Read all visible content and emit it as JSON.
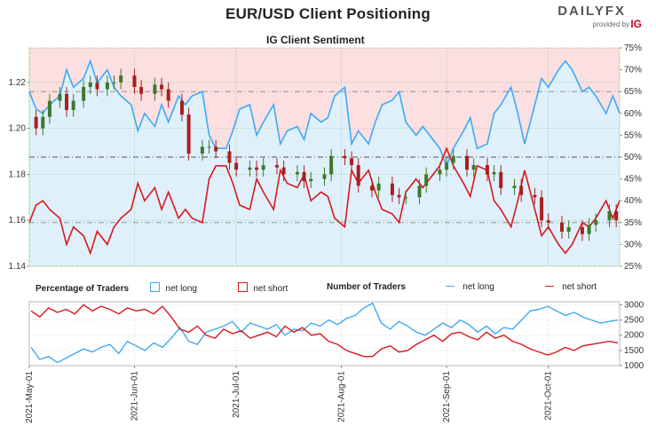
{
  "header": {
    "title": "EUR/USD Client Positioning",
    "subtitle": "IG Client Sentiment",
    "logo_brand": "DAILYFX",
    "logo_provided": "provided by",
    "logo_ig": "IG"
  },
  "legend": {
    "pct_label": "Percentage of Traders",
    "pct_long": "net long",
    "pct_short": "net short",
    "num_label": "Number of Traders",
    "num_long": "net long",
    "num_short": "net short"
  },
  "colors": {
    "long": "#3fa9f5",
    "short": "#d7191c",
    "bull_candle": "#3c7a2b",
    "bear_candle": "#a82020",
    "long_zone": "#dff0fb",
    "short_zone": "#fbdfe1",
    "axis_green": "#7bb661"
  },
  "chart_data": [
    {
      "type": "candlestick+line",
      "name": "price-and-percentage",
      "x_ticks": [
        "2021-May-01",
        "2021-Jun-01",
        "2021-Jul-01",
        "2021-Aug-01",
        "2021-Sep-01",
        "2021-Oct-01"
      ],
      "x_range": [
        "2021-05-01",
        "2021-10-22"
      ],
      "y_left_ticks": [
        "1.14",
        "1.16",
        "1.18",
        "1.20",
        "1.22"
      ],
      "y_left_range": [
        1.14,
        1.235
      ],
      "y_right_ticks": [
        "25%",
        "30%",
        "35%",
        "40%",
        "45%",
        "50%",
        "55%",
        "60%",
        "65%",
        "70%",
        "75%"
      ],
      "y_right_range": [
        25,
        75
      ],
      "reference_lines": [
        35,
        50,
        65
      ],
      "net_long_pct_series": {
        "dates": [
          "2021-05-01",
          "2021-05-03",
          "2021-05-05",
          "2021-05-07",
          "2021-05-10",
          "2021-05-12",
          "2021-05-14",
          "2021-05-17",
          "2021-05-19",
          "2021-05-21",
          "2021-05-24",
          "2021-05-26",
          "2021-05-28",
          "2021-05-31",
          "2021-06-02",
          "2021-06-04",
          "2021-06-07",
          "2021-06-09",
          "2021-06-11",
          "2021-06-14",
          "2021-06-16",
          "2021-06-18",
          "2021-06-21",
          "2021-06-23",
          "2021-06-25",
          "2021-06-28",
          "2021-06-30",
          "2021-07-02",
          "2021-07-05",
          "2021-07-07",
          "2021-07-09",
          "2021-07-12",
          "2021-07-14",
          "2021-07-16",
          "2021-07-19",
          "2021-07-21",
          "2021-07-23",
          "2021-07-26",
          "2021-07-28",
          "2021-07-30",
          "2021-08-02",
          "2021-08-04",
          "2021-08-06",
          "2021-08-09",
          "2021-08-11",
          "2021-08-13",
          "2021-08-16",
          "2021-08-18",
          "2021-08-20",
          "2021-08-23",
          "2021-08-25",
          "2021-08-27",
          "2021-08-30",
          "2021-09-01",
          "2021-09-03",
          "2021-09-06",
          "2021-09-08",
          "2021-09-10",
          "2021-09-13",
          "2021-09-15",
          "2021-09-17",
          "2021-09-20",
          "2021-09-22",
          "2021-09-24",
          "2021-09-27",
          "2021-09-29",
          "2021-10-01",
          "2021-10-04",
          "2021-10-06",
          "2021-10-08",
          "2021-10-11",
          "2021-10-13",
          "2021-10-15",
          "2021-10-18",
          "2021-10-20",
          "2021-10-22"
        ],
        "values": [
          65,
          61,
          60,
          62,
          64,
          70,
          66,
          68,
          72,
          67,
          70,
          66,
          64,
          62,
          56,
          60,
          57,
          62,
          58,
          64,
          62,
          64,
          65,
          55,
          52,
          52,
          56,
          61,
          62,
          55,
          58,
          62,
          53,
          56,
          57,
          54,
          60,
          58,
          59,
          64,
          66,
          53,
          56,
          53,
          58,
          62,
          63,
          65,
          58,
          55,
          57,
          55,
          52,
          48,
          52,
          56,
          59,
          52,
          53,
          60,
          62,
          66,
          60,
          53,
          62,
          68,
          66,
          70,
          72,
          70,
          65,
          66,
          64,
          60,
          64,
          60
        ]
      },
      "candles": {
        "dates": [
          "2021-05-03",
          "2021-05-05",
          "2021-05-07",
          "2021-05-10",
          "2021-05-12",
          "2021-05-14",
          "2021-05-17",
          "2021-05-19",
          "2021-05-21",
          "2021-05-24",
          "2021-05-26",
          "2021-05-28",
          "2021-06-01",
          "2021-06-03",
          "2021-06-07",
          "2021-06-09",
          "2021-06-11",
          "2021-06-15",
          "2021-06-17",
          "2021-06-21",
          "2021-06-23",
          "2021-06-25",
          "2021-06-29",
          "2021-07-01",
          "2021-07-05",
          "2021-07-07",
          "2021-07-09",
          "2021-07-13",
          "2021-07-15",
          "2021-07-19",
          "2021-07-21",
          "2021-07-23",
          "2021-07-27",
          "2021-07-29",
          "2021-08-02",
          "2021-08-04",
          "2021-08-06",
          "2021-08-10",
          "2021-08-12",
          "2021-08-16",
          "2021-08-18",
          "2021-08-20",
          "2021-08-24",
          "2021-08-26",
          "2021-08-30",
          "2021-09-01",
          "2021-09-03",
          "2021-09-07",
          "2021-09-09",
          "2021-09-13",
          "2021-09-15",
          "2021-09-17",
          "2021-09-21",
          "2021-09-23",
          "2021-09-27",
          "2021-09-29",
          "2021-10-01",
          "2021-10-05",
          "2021-10-07",
          "2021-10-11",
          "2021-10-13",
          "2021-10-15",
          "2021-10-19",
          "2021-10-21"
        ],
        "open": [
          1.205,
          1.2,
          1.205,
          1.212,
          1.215,
          1.208,
          1.212,
          1.218,
          1.22,
          1.217,
          1.22,
          1.22,
          1.223,
          1.218,
          1.215,
          1.219,
          1.217,
          1.212,
          1.206,
          1.189,
          1.192,
          1.192,
          1.19,
          1.185,
          1.182,
          1.183,
          1.182,
          1.184,
          1.183,
          1.18,
          1.181,
          1.177,
          1.178,
          1.18,
          1.188,
          1.187,
          1.184,
          1.175,
          1.173,
          1.176,
          1.171,
          1.17,
          1.17,
          1.175,
          1.18,
          1.182,
          1.185,
          1.188,
          1.182,
          1.184,
          1.18,
          1.181,
          1.174,
          1.175,
          1.171,
          1.17,
          1.16,
          1.159,
          1.155,
          1.157,
          1.154,
          1.158,
          1.16,
          1.164
        ],
        "close": [
          1.2,
          1.205,
          1.212,
          1.215,
          1.208,
          1.212,
          1.218,
          1.22,
          1.217,
          1.22,
          1.22,
          1.223,
          1.218,
          1.215,
          1.219,
          1.217,
          1.212,
          1.206,
          1.189,
          1.192,
          1.192,
          1.19,
          1.185,
          1.182,
          1.183,
          1.182,
          1.184,
          1.183,
          1.18,
          1.181,
          1.177,
          1.178,
          1.18,
          1.188,
          1.187,
          1.184,
          1.175,
          1.173,
          1.176,
          1.171,
          1.17,
          1.17,
          1.175,
          1.18,
          1.182,
          1.185,
          1.188,
          1.182,
          1.184,
          1.18,
          1.181,
          1.174,
          1.175,
          1.171,
          1.17,
          1.16,
          1.159,
          1.155,
          1.157,
          1.154,
          1.158,
          1.16,
          1.164,
          1.16
        ]
      }
    },
    {
      "type": "line",
      "name": "number-of-traders",
      "x_range": [
        "2021-05-01",
        "2021-10-22"
      ],
      "y_ticks": [
        "1000",
        "1500",
        "2000",
        "2500",
        "3000"
      ],
      "y_range": [
        1000,
        3100
      ],
      "series": [
        {
          "name": "net long",
          "values": [
            1600,
            1200,
            1300,
            1100,
            1250,
            1400,
            1550,
            1450,
            1600,
            1700,
            1400,
            1800,
            1650,
            1500,
            1750,
            1600,
            1900,
            2250,
            1800,
            1700,
            2100,
            2200,
            2300,
            2450,
            2100,
            2400,
            2300,
            2200,
            2350,
            2000,
            2200,
            2150,
            2400,
            2300,
            2500,
            2350,
            2550,
            2650,
            2900,
            3050,
            2400,
            2200,
            2450,
            2300,
            2100,
            2000,
            2200,
            2400,
            2250,
            2500,
            2350,
            2100,
            2300,
            2050,
            2250,
            2200,
            2500,
            2800,
            2850,
            2950,
            2800,
            2650,
            2750,
            2600,
            2500,
            2400,
            2450,
            2500
          ]
        },
        {
          "name": "net short",
          "values": [
            2800,
            2600,
            2900,
            2750,
            2850,
            2700,
            3000,
            2800,
            2950,
            2850,
            2700,
            2900,
            2800,
            2850,
            2700,
            2950,
            2600,
            2200,
            2100,
            2300,
            2000,
            1900,
            2200,
            2050,
            2150,
            1900,
            2000,
            2100,
            1950,
            2300,
            2100,
            2250,
            2000,
            2050,
            1800,
            1700,
            1500,
            1400,
            1300,
            1300,
            1550,
            1650,
            1450,
            1500,
            1700,
            1850,
            2000,
            1800,
            2050,
            2100,
            1950,
            1850,
            2100,
            1900,
            2000,
            1800,
            1700,
            1550,
            1450,
            1350,
            1450,
            1600,
            1500,
            1650,
            1700,
            1750,
            1800,
            1750
          ]
        }
      ]
    }
  ]
}
